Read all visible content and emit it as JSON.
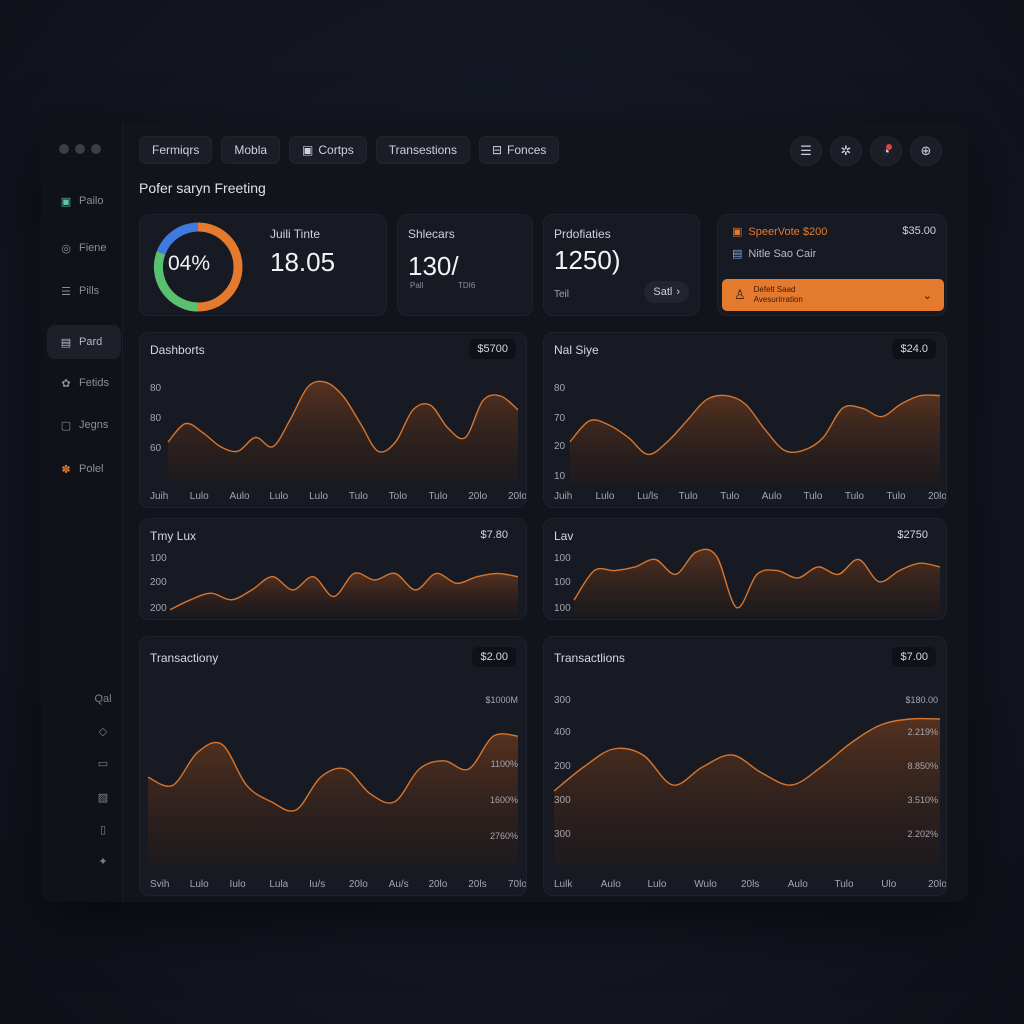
{
  "window": {
    "tabs": [
      {
        "label": "Fermiqrs",
        "icon": ""
      },
      {
        "label": "Mobla",
        "icon": ""
      },
      {
        "label": "Cortps",
        "icon": "calendar-icon"
      },
      {
        "label": "Transestions",
        "icon": ""
      },
      {
        "label": "Fonces",
        "icon": "tag-icon"
      }
    ],
    "page_title": "Pofer saryn Freeting"
  },
  "sidebar": {
    "items": [
      {
        "label": "Pailo",
        "icon": "grid-icon"
      },
      {
        "label": "Fiene",
        "icon": "fingerprint-icon"
      },
      {
        "label": "Pills",
        "icon": "list-icon"
      },
      {
        "label": "Pard",
        "icon": "card-icon",
        "active": true
      },
      {
        "label": "Fetids",
        "icon": "cloud-icon"
      },
      {
        "label": "Jegns",
        "icon": "folder-icon"
      },
      {
        "label": "Polel",
        "icon": "flower-icon"
      }
    ],
    "lower": [
      {
        "label": "Qal",
        "icon": ""
      },
      {
        "label": "",
        "icon": "shield-icon"
      },
      {
        "label": "",
        "icon": "chat-icon"
      },
      {
        "label": "",
        "icon": "image-icon"
      },
      {
        "label": "",
        "icon": "document-icon"
      },
      {
        "label": "",
        "icon": "star-icon"
      }
    ]
  },
  "stats": {
    "donut": {
      "label": "04%",
      "fraction": 0.55
    },
    "time": {
      "title": "Juili Tinte",
      "value": "18.05"
    },
    "shelcars": {
      "title": "Shlecars",
      "value": "130/",
      "sub_left": "Pall",
      "sub_right": "TDI6"
    },
    "profits": {
      "title": "Prdofiaties",
      "value": "1250)",
      "sub": "Teil",
      "button": "Satl"
    },
    "promo": {
      "line1": "SpeerVote $200",
      "line1_value": "$35.00",
      "line2": "Nitle Sao Cair",
      "bar_line1": "Defelt Saad",
      "bar_line2": "Avesurirration"
    }
  },
  "chart_data": [
    {
      "title": "Dashborts",
      "value": "$5700",
      "type": "area",
      "ylabels": [
        "80",
        "80",
        "60"
      ],
      "xlabels": [
        "Juih",
        "Lulo",
        "Aulo",
        "Lulo",
        "Lulo",
        "Tulo",
        "Tolo",
        "Tulo",
        "20lo",
        "20lo"
      ],
      "values": [
        0.25,
        0.45,
        0.35,
        0.2,
        0.15,
        0.3,
        0.2,
        0.5,
        0.85,
        0.9,
        0.75,
        0.45,
        0.15,
        0.25,
        0.6,
        0.65,
        0.4,
        0.3,
        0.7,
        0.75,
        0.6
      ]
    },
    {
      "title": "Nal Siye",
      "value": "$24.0",
      "type": "area",
      "ylabels": [
        "80",
        "70",
        "20",
        "10"
      ],
      "xlabels": [
        "Juih",
        "Lulo",
        "Lu/ls",
        "Tulo",
        "Tulo",
        "Aulo",
        "Tulo",
        "Tulo",
        "Tulo",
        "20lo"
      ],
      "values": [
        0.3,
        0.55,
        0.5,
        0.35,
        0.15,
        0.3,
        0.55,
        0.8,
        0.85,
        0.75,
        0.45,
        0.2,
        0.2,
        0.35,
        0.7,
        0.7,
        0.6,
        0.75,
        0.85,
        0.85
      ]
    },
    {
      "title": "Tmy Lux",
      "value": "$7.80",
      "type": "area",
      "ylabels": [
        "100",
        "200",
        "200"
      ],
      "xlabels": [],
      "values": [
        0.05,
        0.2,
        0.3,
        0.2,
        0.35,
        0.55,
        0.35,
        0.55,
        0.25,
        0.6,
        0.5,
        0.6,
        0.35,
        0.6,
        0.45,
        0.55,
        0.6,
        0.55
      ]
    },
    {
      "title": "Lav",
      "value": "$2750",
      "type": "area",
      "ylabels": [
        "100",
        "100",
        "100"
      ],
      "xlabels": [],
      "values": [
        0.2,
        0.6,
        0.6,
        0.65,
        0.75,
        0.55,
        0.85,
        0.8,
        0.1,
        0.55,
        0.6,
        0.5,
        0.65,
        0.55,
        0.75,
        0.45,
        0.6,
        0.7,
        0.65
      ]
    },
    {
      "title": "Transactiony",
      "value": "$2.00",
      "type": "area",
      "ylabels_right": [
        "$1000M",
        "1100%",
        "1600%",
        "2760%"
      ],
      "xlabels": [
        "Svih",
        "Lulo",
        "Iulo",
        "Lula",
        "Iu/s",
        "20lo",
        "Au/s",
        "20lo",
        "20ls",
        "70lo"
      ],
      "values": [
        0.45,
        0.4,
        0.6,
        0.65,
        0.4,
        0.3,
        0.25,
        0.45,
        0.5,
        0.35,
        0.3,
        0.5,
        0.55,
        0.5,
        0.7,
        0.7
      ]
    },
    {
      "title": "Transactlions",
      "value": "$7.00",
      "type": "area",
      "ylabels": [
        "300",
        "400",
        "200",
        "300",
        "300"
      ],
      "ylabels_right": [
        "$180.00",
        "2.219%",
        "8.850%",
        "3.510%",
        "2.202%"
      ],
      "xlabels": [
        "Lulk",
        "Aulo",
        "Lulo",
        "Wulo",
        "20ls",
        "Aulo",
        "Tulo",
        "Ulo",
        "20lo"
      ],
      "values": [
        0.3,
        0.5,
        0.65,
        0.6,
        0.35,
        0.5,
        0.6,
        0.45,
        0.35,
        0.5,
        0.7,
        0.85,
        0.9,
        0.9
      ]
    }
  ],
  "colors": {
    "accent": "#e47a2e",
    "line": "#d6752e",
    "donut_blue": "#3f7ae0",
    "donut_green": "#59c070"
  }
}
